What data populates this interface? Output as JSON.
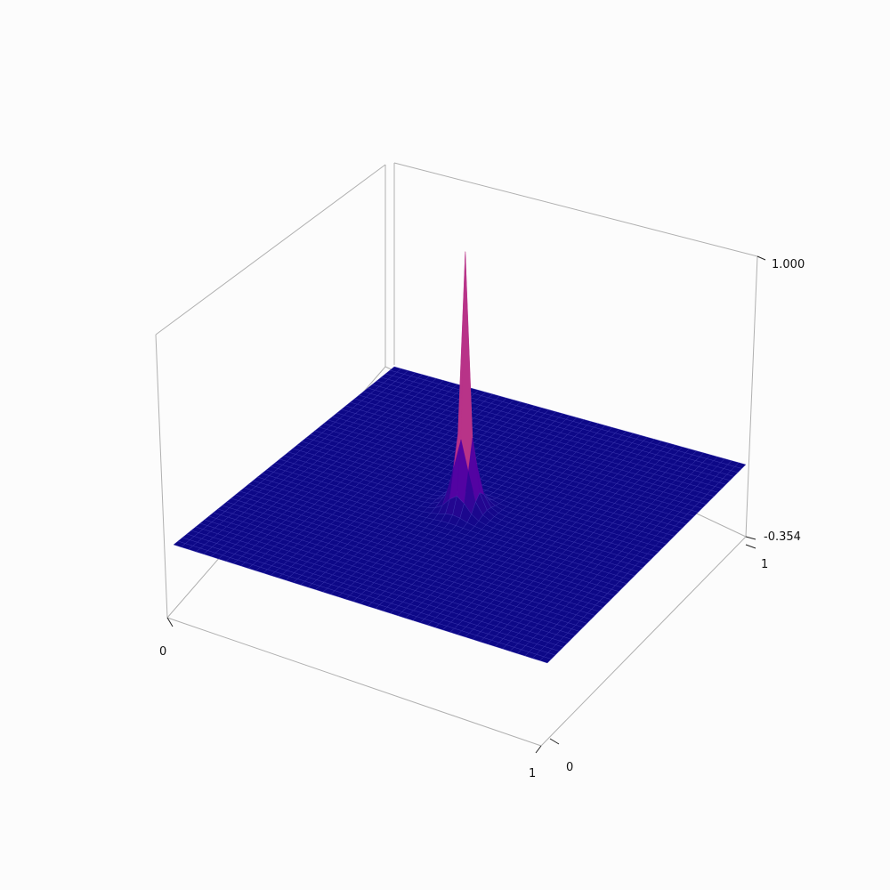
{
  "chart_data": {
    "type": "surface3d",
    "colormap": "plasma",
    "grid": true,
    "x_ticks": [
      "0",
      "1"
    ],
    "y_ticks": [
      "0",
      "1"
    ],
    "z_ticks": [
      "-0.354",
      "1.000"
    ],
    "xlim": [
      0,
      1
    ],
    "ylim": [
      0,
      1
    ],
    "zlim": [
      -0.354,
      1.0
    ],
    "surface": {
      "baseline": 0.0,
      "peak": {
        "x": 0.5,
        "y": 0.5,
        "z": 1.0
      },
      "shape": "sharp spike on flat plane"
    }
  },
  "colors": {
    "background": "#fcfcfc",
    "flat_surface": "#0d0887",
    "peak_top": "#f0f921"
  }
}
